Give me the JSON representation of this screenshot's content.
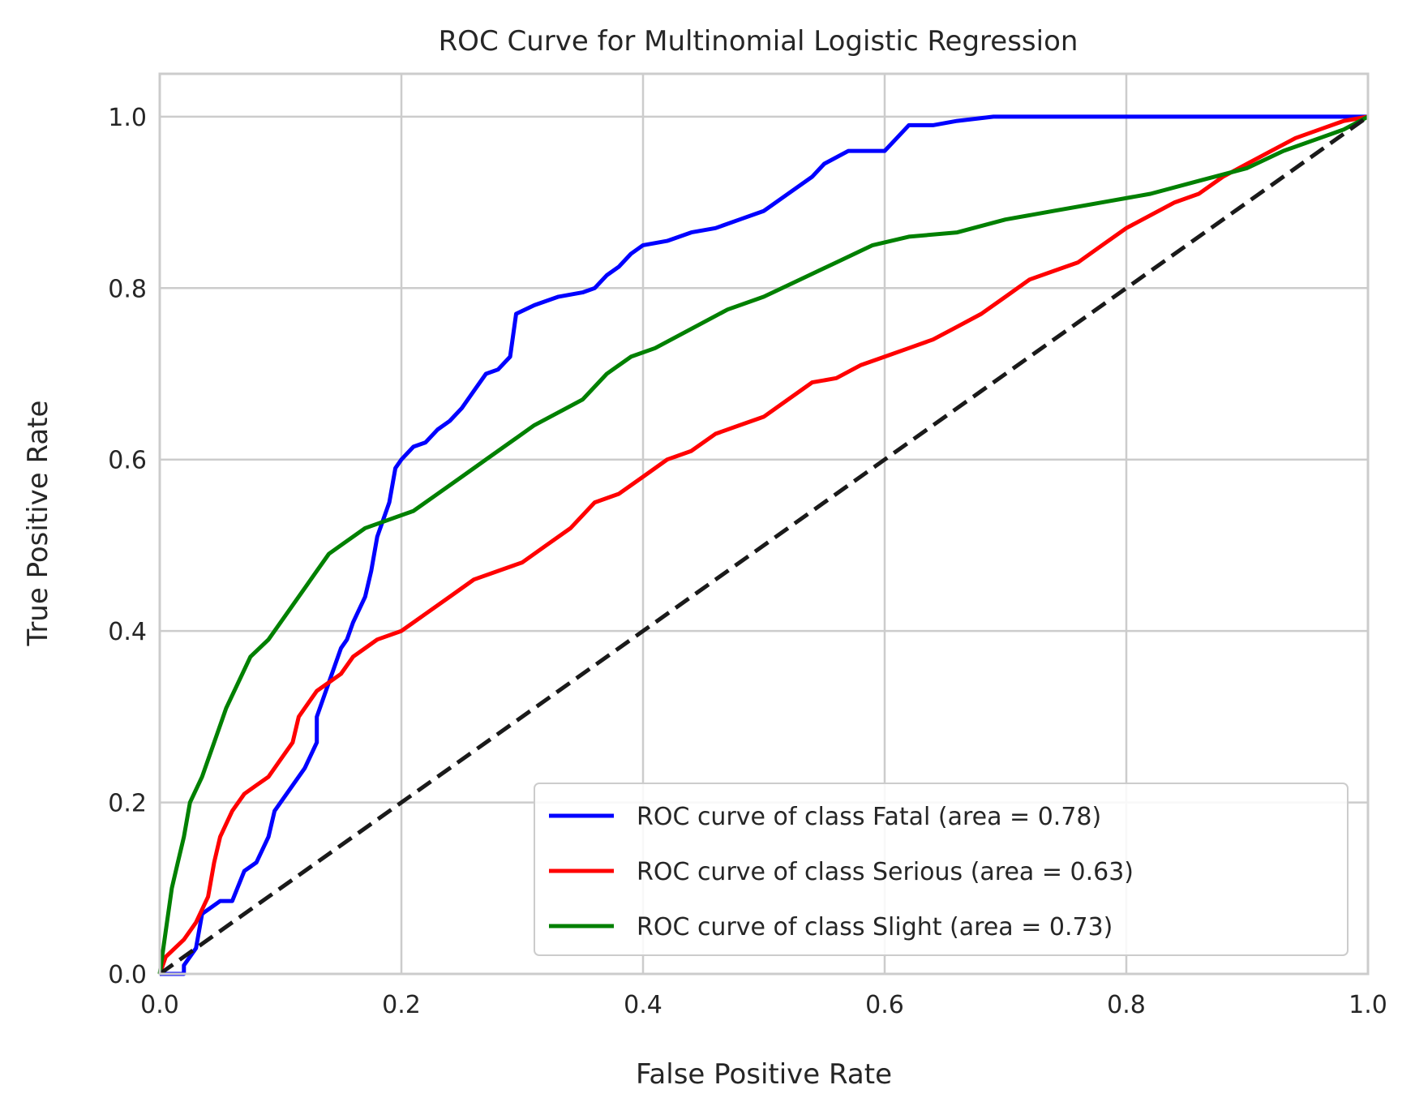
{
  "chart_data": {
    "type": "line",
    "title": "ROC Curve for Multinomial Logistic Regression",
    "xlabel": "False Positive Rate",
    "ylabel": "True Positive Rate",
    "xlim": [
      0.0,
      1.0
    ],
    "ylim": [
      0.0,
      1.05
    ],
    "x_ticks": [
      "0.0",
      "0.2",
      "0.4",
      "0.6",
      "0.8",
      "1.0"
    ],
    "y_ticks": [
      "0.0",
      "0.2",
      "0.4",
      "0.6",
      "0.8",
      "1.0"
    ],
    "x_tick_values": [
      0.0,
      0.2,
      0.4,
      0.6,
      0.8,
      1.0
    ],
    "y_tick_values": [
      0.0,
      0.2,
      0.4,
      0.6,
      0.8,
      1.0
    ],
    "grid": true,
    "legend_position": "lower-right",
    "series": [
      {
        "name": "ROC curve of class Fatal (area = 0.78)",
        "color": "#0000ff",
        "points": [
          [
            0.0,
            0.0
          ],
          [
            0.02,
            0.0
          ],
          [
            0.02,
            0.01
          ],
          [
            0.03,
            0.03
          ],
          [
            0.035,
            0.07
          ],
          [
            0.05,
            0.085
          ],
          [
            0.06,
            0.085
          ],
          [
            0.07,
            0.12
          ],
          [
            0.08,
            0.13
          ],
          [
            0.09,
            0.16
          ],
          [
            0.095,
            0.19
          ],
          [
            0.11,
            0.22
          ],
          [
            0.12,
            0.24
          ],
          [
            0.13,
            0.27
          ],
          [
            0.13,
            0.3
          ],
          [
            0.14,
            0.34
          ],
          [
            0.15,
            0.38
          ],
          [
            0.155,
            0.39
          ],
          [
            0.16,
            0.41
          ],
          [
            0.17,
            0.44
          ],
          [
            0.175,
            0.47
          ],
          [
            0.18,
            0.51
          ],
          [
            0.19,
            0.55
          ],
          [
            0.195,
            0.59
          ],
          [
            0.2,
            0.6
          ],
          [
            0.21,
            0.615
          ],
          [
            0.22,
            0.62
          ],
          [
            0.23,
            0.635
          ],
          [
            0.24,
            0.645
          ],
          [
            0.25,
            0.66
          ],
          [
            0.26,
            0.68
          ],
          [
            0.27,
            0.7
          ],
          [
            0.28,
            0.705
          ],
          [
            0.29,
            0.72
          ],
          [
            0.295,
            0.77
          ],
          [
            0.31,
            0.78
          ],
          [
            0.33,
            0.79
          ],
          [
            0.35,
            0.795
          ],
          [
            0.36,
            0.8
          ],
          [
            0.37,
            0.815
          ],
          [
            0.38,
            0.825
          ],
          [
            0.39,
            0.84
          ],
          [
            0.4,
            0.85
          ],
          [
            0.42,
            0.855
          ],
          [
            0.44,
            0.865
          ],
          [
            0.46,
            0.87
          ],
          [
            0.48,
            0.88
          ],
          [
            0.5,
            0.89
          ],
          [
            0.52,
            0.91
          ],
          [
            0.54,
            0.93
          ],
          [
            0.55,
            0.945
          ],
          [
            0.57,
            0.96
          ],
          [
            0.6,
            0.96
          ],
          [
            0.61,
            0.975
          ],
          [
            0.62,
            0.99
          ],
          [
            0.64,
            0.99
          ],
          [
            0.66,
            0.995
          ],
          [
            0.69,
            1.0
          ],
          [
            0.8,
            1.0
          ],
          [
            1.0,
            1.0
          ]
        ]
      },
      {
        "name": "ROC curve of class Serious (area = 0.63)",
        "color": "#ff0000",
        "points": [
          [
            0.0,
            0.0
          ],
          [
            0.005,
            0.02
          ],
          [
            0.02,
            0.04
          ],
          [
            0.03,
            0.06
          ],
          [
            0.04,
            0.09
          ],
          [
            0.045,
            0.13
          ],
          [
            0.05,
            0.16
          ],
          [
            0.06,
            0.19
          ],
          [
            0.07,
            0.21
          ],
          [
            0.08,
            0.22
          ],
          [
            0.09,
            0.23
          ],
          [
            0.1,
            0.25
          ],
          [
            0.11,
            0.27
          ],
          [
            0.115,
            0.3
          ],
          [
            0.12,
            0.31
          ],
          [
            0.13,
            0.33
          ],
          [
            0.14,
            0.34
          ],
          [
            0.15,
            0.35
          ],
          [
            0.16,
            0.37
          ],
          [
            0.17,
            0.38
          ],
          [
            0.18,
            0.39
          ],
          [
            0.2,
            0.4
          ],
          [
            0.22,
            0.42
          ],
          [
            0.24,
            0.44
          ],
          [
            0.26,
            0.46
          ],
          [
            0.28,
            0.47
          ],
          [
            0.3,
            0.48
          ],
          [
            0.32,
            0.5
          ],
          [
            0.34,
            0.52
          ],
          [
            0.36,
            0.55
          ],
          [
            0.38,
            0.56
          ],
          [
            0.4,
            0.58
          ],
          [
            0.42,
            0.6
          ],
          [
            0.44,
            0.61
          ],
          [
            0.46,
            0.63
          ],
          [
            0.48,
            0.64
          ],
          [
            0.5,
            0.65
          ],
          [
            0.52,
            0.67
          ],
          [
            0.54,
            0.69
          ],
          [
            0.56,
            0.695
          ],
          [
            0.58,
            0.71
          ],
          [
            0.6,
            0.72
          ],
          [
            0.62,
            0.73
          ],
          [
            0.64,
            0.74
          ],
          [
            0.66,
            0.755
          ],
          [
            0.68,
            0.77
          ],
          [
            0.7,
            0.79
          ],
          [
            0.72,
            0.81
          ],
          [
            0.74,
            0.82
          ],
          [
            0.76,
            0.83
          ],
          [
            0.78,
            0.85
          ],
          [
            0.8,
            0.87
          ],
          [
            0.82,
            0.885
          ],
          [
            0.84,
            0.9
          ],
          [
            0.86,
            0.91
          ],
          [
            0.88,
            0.93
          ],
          [
            0.9,
            0.945
          ],
          [
            0.92,
            0.96
          ],
          [
            0.94,
            0.975
          ],
          [
            0.96,
            0.985
          ],
          [
            0.98,
            0.995
          ],
          [
            1.0,
            1.0
          ]
        ]
      },
      {
        "name": "ROC curve of class Slight (area = 0.73)",
        "color": "#008000",
        "points": [
          [
            0.0,
            0.0
          ],
          [
            0.005,
            0.05
          ],
          [
            0.01,
            0.1
          ],
          [
            0.015,
            0.13
          ],
          [
            0.02,
            0.16
          ],
          [
            0.025,
            0.2
          ],
          [
            0.035,
            0.23
          ],
          [
            0.045,
            0.27
          ],
          [
            0.055,
            0.31
          ],
          [
            0.065,
            0.34
          ],
          [
            0.075,
            0.37
          ],
          [
            0.09,
            0.39
          ],
          [
            0.1,
            0.41
          ],
          [
            0.11,
            0.43
          ],
          [
            0.12,
            0.45
          ],
          [
            0.13,
            0.47
          ],
          [
            0.14,
            0.49
          ],
          [
            0.15,
            0.5
          ],
          [
            0.17,
            0.52
          ],
          [
            0.19,
            0.53
          ],
          [
            0.21,
            0.54
          ],
          [
            0.23,
            0.56
          ],
          [
            0.25,
            0.58
          ],
          [
            0.27,
            0.6
          ],
          [
            0.29,
            0.62
          ],
          [
            0.31,
            0.64
          ],
          [
            0.33,
            0.655
          ],
          [
            0.35,
            0.67
          ],
          [
            0.37,
            0.7
          ],
          [
            0.39,
            0.72
          ],
          [
            0.41,
            0.73
          ],
          [
            0.43,
            0.745
          ],
          [
            0.45,
            0.76
          ],
          [
            0.47,
            0.775
          ],
          [
            0.5,
            0.79
          ],
          [
            0.53,
            0.81
          ],
          [
            0.56,
            0.83
          ],
          [
            0.59,
            0.85
          ],
          [
            0.62,
            0.86
          ],
          [
            0.66,
            0.865
          ],
          [
            0.7,
            0.88
          ],
          [
            0.74,
            0.89
          ],
          [
            0.78,
            0.9
          ],
          [
            0.82,
            0.91
          ],
          [
            0.86,
            0.925
          ],
          [
            0.9,
            0.94
          ],
          [
            0.93,
            0.96
          ],
          [
            0.96,
            0.975
          ],
          [
            0.98,
            0.985
          ],
          [
            1.0,
            1.0
          ]
        ]
      },
      {
        "name": "",
        "color": "#1a1a1a",
        "dashed": true,
        "points": [
          [
            0.0,
            0.0
          ],
          [
            1.0,
            1.0
          ]
        ]
      }
    ]
  }
}
